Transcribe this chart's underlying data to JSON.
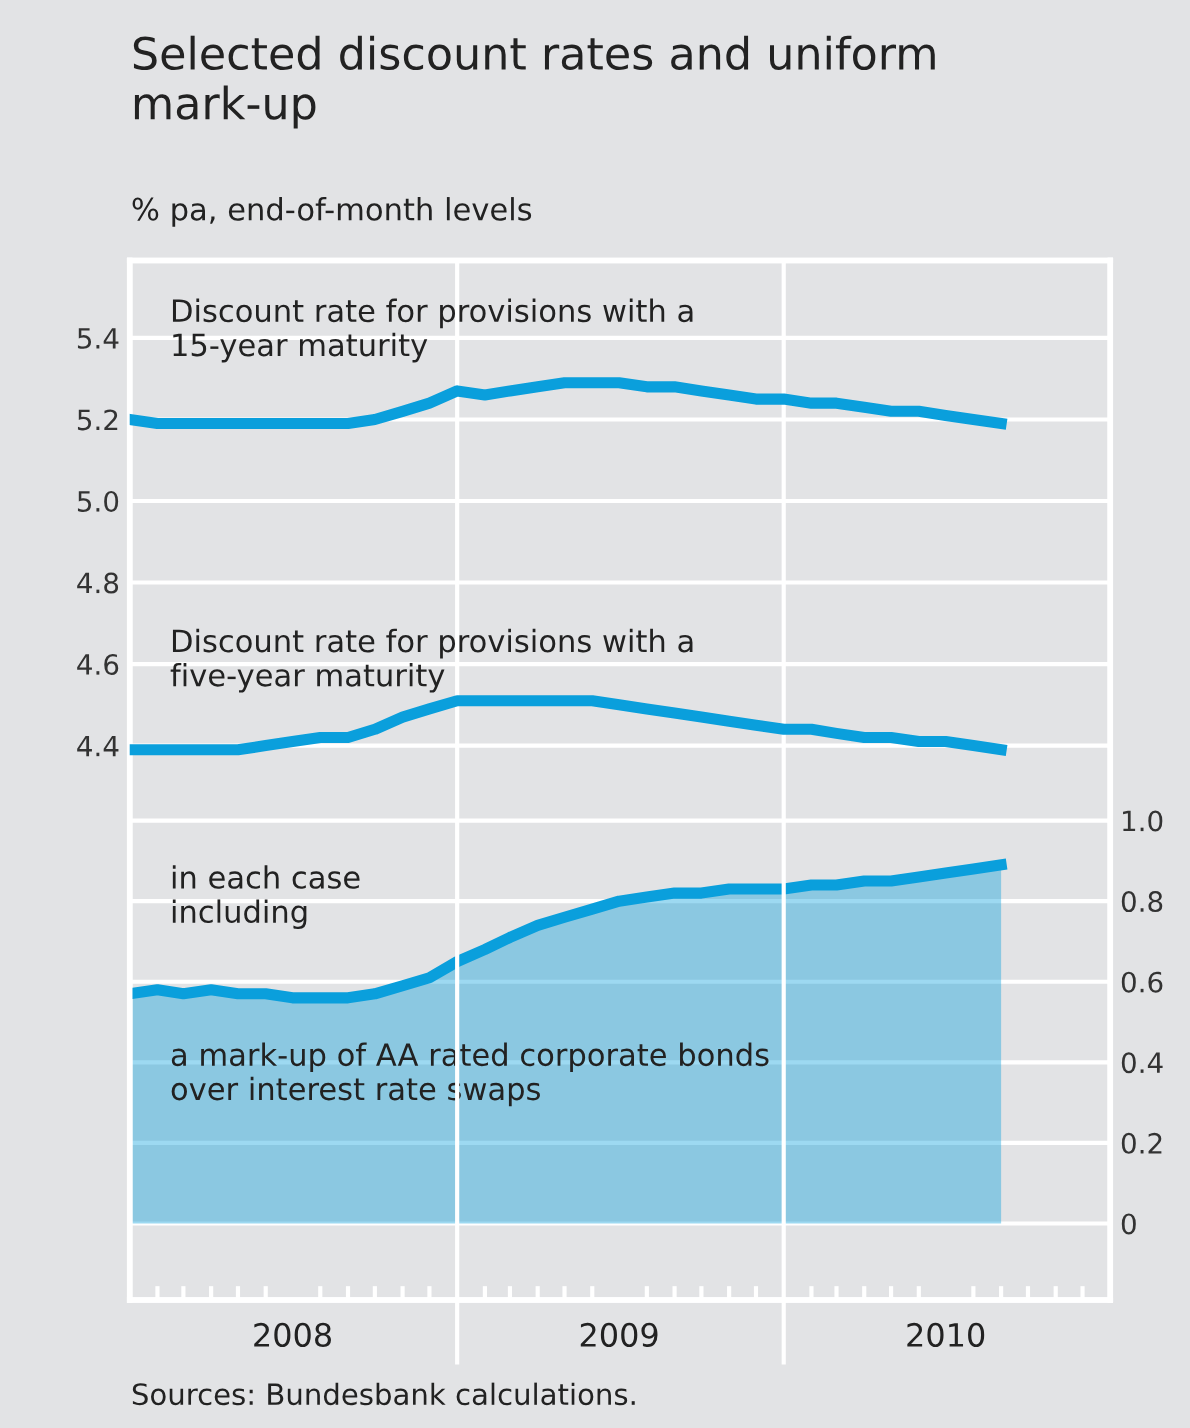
{
  "chart_data": {
    "type": "line",
    "title": "Selected discount rates and uniform\nmark-up",
    "subtitle": "% pa, end-of-month levels",
    "x": [
      "2008-01-01",
      "2008-02-01",
      "2008-03-01",
      "2008-04-01",
      "2008-05-01",
      "2008-06-01",
      "2008-07-01",
      "2008-08-01",
      "2008-09-01",
      "2008-10-01",
      "2008-11-01",
      "2008-12-01",
      "2009-01-01",
      "2009-02-01",
      "2009-03-01",
      "2009-04-01",
      "2009-05-01",
      "2009-06-01",
      "2009-07-01",
      "2009-08-01",
      "2009-09-01",
      "2009-10-01",
      "2009-11-01",
      "2009-12-01",
      "2010-01-01",
      "2010-02-01",
      "2010-03-01",
      "2010-04-01",
      "2010-05-01",
      "2010-06-01",
      "2010-07-01",
      "2010-08-01",
      "2010-09-01"
    ],
    "series": [
      {
        "name": "Discount rate for provisions with a\n15-year maturity",
        "color": "#0a9fdc",
        "values": [
          5.2,
          5.19,
          5.19,
          5.19,
          5.19,
          5.19,
          5.19,
          5.19,
          5.19,
          5.2,
          5.22,
          5.24,
          5.27,
          5.26,
          5.27,
          5.28,
          5.29,
          5.29,
          5.29,
          5.28,
          5.28,
          5.27,
          5.26,
          5.25,
          5.25,
          5.24,
          5.24,
          5.23,
          5.22,
          5.22,
          5.21,
          5.2,
          5.19
        ]
      },
      {
        "name": "Discount rate for provisions with a\nfive-year maturity",
        "color": "#0a9fdc",
        "values": [
          4.39,
          4.39,
          4.39,
          4.39,
          4.39,
          4.4,
          4.41,
          4.42,
          4.42,
          4.44,
          4.47,
          4.49,
          4.51,
          4.51,
          4.51,
          4.51,
          4.51,
          4.51,
          4.5,
          4.49,
          4.48,
          4.47,
          4.46,
          4.45,
          4.44,
          4.44,
          4.43,
          4.42,
          4.42,
          4.41,
          4.41,
          4.4,
          4.39
        ]
      },
      {
        "name": "a mark-up of AA rated corporate bonds\nover interest rate swaps",
        "type": "area",
        "axis": "y2",
        "color": "#0a9fdc",
        "values": [
          0.57,
          0.58,
          0.57,
          0.58,
          0.57,
          0.57,
          0.56,
          0.56,
          0.56,
          0.57,
          0.59,
          0.61,
          0.65,
          0.68,
          0.71,
          0.74,
          0.76,
          0.78,
          0.8,
          0.81,
          0.82,
          0.82,
          0.83,
          0.83,
          0.83,
          0.84,
          0.84,
          0.85,
          0.85,
          0.86,
          0.87,
          0.88,
          0.89
        ]
      }
    ],
    "xlim": [
      "2008-01-01",
      "2011-01-01"
    ],
    "xticks": [
      {
        "value": "2008-07-01",
        "label": "2008"
      },
      {
        "value": "2009-01-01",
        "label": null
      },
      {
        "value": "2009-07-01",
        "label": "2009"
      },
      {
        "value": "2010-01-01",
        "label": null
      },
      {
        "value": "2010-07-01",
        "label": "2010"
      }
    ],
    "ylim": [
      3.04,
      5.59
    ],
    "yticks": [
      4.4,
      4.6,
      4.8,
      {
        "value": 5.0,
        "label": "5.0"
      },
      5.2,
      5.4
    ],
    "y2lim": [
      -0.19,
      2.39
    ],
    "y2ticks": [
      0,
      0.2,
      0.4,
      0.6,
      0.8,
      {
        "value": 1.0,
        "label": "1.0"
      }
    ],
    "grid": true,
    "legend": false,
    "marker": "none",
    "line_style": "solid",
    "annotations": [
      "in each case\nincluding",
      "Sources: Bundesbank calculations."
    ]
  }
}
